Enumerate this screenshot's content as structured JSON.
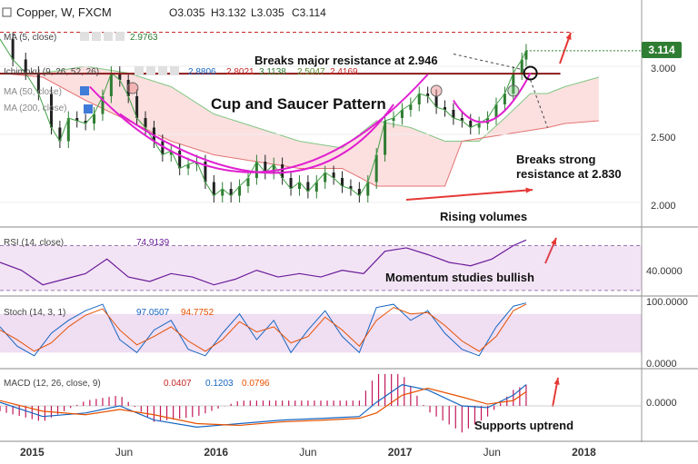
{
  "chart_data": {
    "type": "line",
    "main": {
      "symbol_line": "Copper, W, FXCM",
      "ohlc": {
        "open": "O3.035",
        "high": "H3.132",
        "low": "L3.035",
        "close": "C3.114"
      },
      "price_badge": "3.114",
      "indicators": [
        {
          "label": "MA (5, close)",
          "value": "2.9763",
          "color": "#2e7d32"
        },
        {
          "label": "Ichimoku (9, 26, 52, 26)",
          "values": [
            "2.8806",
            "2.8021",
            "3.1138",
            "2.5047",
            "2.4169"
          ],
          "colors": [
            "#1565c0",
            "#c62828",
            "#2e7d32",
            "#558b2f",
            "#c62828"
          ]
        },
        {
          "label": "MA (50, close)",
          "value": ""
        },
        {
          "label": "MA (200, close)",
          "value": ""
        }
      ],
      "ylabels": [
        "3.000",
        "2.500",
        "2.000"
      ],
      "yticks": [
        3.0,
        2.5,
        2.0
      ],
      "ylim": [
        1.82,
        3.3
      ],
      "resistance_levels": [
        2.946,
        2.83
      ],
      "close_series": [
        [
          0,
          3.2
        ],
        [
          3,
          3.05
        ],
        [
          6,
          2.95
        ],
        [
          9,
          2.8
        ],
        [
          12,
          2.55
        ],
        [
          14,
          2.45
        ],
        [
          16,
          2.62
        ],
        [
          18,
          2.6
        ],
        [
          20,
          2.58
        ],
        [
          22,
          2.65
        ],
        [
          24,
          2.78
        ],
        [
          26,
          2.95
        ],
        [
          28,
          2.9
        ],
        [
          30,
          2.78
        ],
        [
          32,
          2.62
        ],
        [
          34,
          2.55
        ],
        [
          36,
          2.45
        ],
        [
          38,
          2.35
        ],
        [
          40,
          2.38
        ],
        [
          42,
          2.25
        ],
        [
          44,
          2.28
        ],
        [
          46,
          2.3
        ],
        [
          48,
          2.15
        ],
        [
          50,
          2.05
        ],
        [
          52,
          2.1
        ],
        [
          54,
          2.05
        ],
        [
          56,
          2.12
        ],
        [
          58,
          2.18
        ],
        [
          60,
          2.3
        ],
        [
          62,
          2.22
        ],
        [
          64,
          2.28
        ],
        [
          66,
          2.18
        ],
        [
          68,
          2.1
        ],
        [
          70,
          2.15
        ],
        [
          72,
          2.08
        ],
        [
          74,
          2.15
        ],
        [
          76,
          2.22
        ],
        [
          78,
          2.18
        ],
        [
          80,
          2.12
        ],
        [
          82,
          2.1
        ],
        [
          84,
          2.05
        ],
        [
          86,
          2.15
        ],
        [
          88,
          2.35
        ],
        [
          90,
          2.6
        ],
        [
          92,
          2.62
        ],
        [
          94,
          2.68
        ],
        [
          96,
          2.72
        ],
        [
          98,
          2.8
        ],
        [
          100,
          2.78
        ],
        [
          102,
          2.7
        ],
        [
          104,
          2.68
        ],
        [
          106,
          2.62
        ],
        [
          108,
          2.6
        ],
        [
          110,
          2.55
        ],
        [
          112,
          2.58
        ],
        [
          114,
          2.62
        ],
        [
          116,
          2.72
        ],
        [
          118,
          2.8
        ],
        [
          120,
          2.95
        ],
        [
          122,
          3.05
        ],
        [
          123,
          3.114
        ]
      ],
      "kumo_upper": [
        [
          0,
          2.95
        ],
        [
          10,
          2.95
        ],
        [
          20,
          3.0
        ],
        [
          30,
          2.95
        ],
        [
          40,
          2.85
        ],
        [
          50,
          2.65
        ],
        [
          60,
          2.55
        ],
        [
          70,
          2.45
        ],
        [
          80,
          2.4
        ],
        [
          88,
          2.6
        ],
        [
          96,
          2.55
        ],
        [
          104,
          2.45
        ],
        [
          112,
          2.45
        ],
        [
          118,
          2.62
        ],
        [
          124,
          2.8
        ],
        [
          128,
          2.8
        ],
        [
          132,
          2.85
        ],
        [
          140,
          2.92
        ]
      ],
      "kumo_lower": [
        [
          0,
          2.95
        ],
        [
          10,
          2.92
        ],
        [
          20,
          2.75
        ],
        [
          30,
          2.6
        ],
        [
          40,
          2.45
        ],
        [
          50,
          2.35
        ],
        [
          60,
          2.3
        ],
        [
          70,
          2.25
        ],
        [
          80,
          2.25
        ],
        [
          88,
          2.12
        ],
        [
          96,
          2.12
        ],
        [
          104,
          2.12
        ],
        [
          108,
          2.45
        ],
        [
          118,
          2.5
        ],
        [
          128,
          2.55
        ],
        [
          132,
          2.58
        ],
        [
          140,
          2.6
        ]
      ],
      "annotations": [
        "Breaks major resistance at 2.946",
        "Cup and Saucer Pattern",
        "Breaks strong",
        "resistance at 2.830",
        "Rising volumes"
      ]
    },
    "rsi": {
      "label": "RSI (14, close)",
      "value": "74.9139",
      "ylabel": "40.0000",
      "band": [
        30,
        70
      ],
      "ylim": [
        25,
        85
      ],
      "series": [
        [
          0,
          55
        ],
        [
          5,
          48
        ],
        [
          10,
          35
        ],
        [
          15,
          40
        ],
        [
          20,
          45
        ],
        [
          25,
          58
        ],
        [
          30,
          42
        ],
        [
          35,
          38
        ],
        [
          40,
          45
        ],
        [
          45,
          42
        ],
        [
          50,
          35
        ],
        [
          55,
          40
        ],
        [
          60,
          48
        ],
        [
          65,
          42
        ],
        [
          70,
          45
        ],
        [
          75,
          42
        ],
        [
          80,
          48
        ],
        [
          85,
          45
        ],
        [
          90,
          65
        ],
        [
          95,
          68
        ],
        [
          100,
          62
        ],
        [
          105,
          55
        ],
        [
          110,
          52
        ],
        [
          115,
          58
        ],
        [
          120,
          70
        ],
        [
          123,
          75
        ]
      ],
      "annotation": "Momentum studies bullish"
    },
    "stoch": {
      "label": "Stoch (14, 3, 1)",
      "k_value": "97.0507",
      "d_value": "94.7752",
      "ylabels": [
        "100.0000",
        "0.0000"
      ],
      "band": [
        20,
        80
      ],
      "ylim": [
        -5,
        105
      ],
      "k": [
        [
          0,
          60
        ],
        [
          4,
          30
        ],
        [
          8,
          15
        ],
        [
          12,
          50
        ],
        [
          16,
          70
        ],
        [
          20,
          85
        ],
        [
          24,
          95
        ],
        [
          28,
          40
        ],
        [
          32,
          20
        ],
        [
          36,
          55
        ],
        [
          40,
          70
        ],
        [
          44,
          25
        ],
        [
          48,
          15
        ],
        [
          52,
          50
        ],
        [
          56,
          80
        ],
        [
          60,
          40
        ],
        [
          64,
          70
        ],
        [
          68,
          20
        ],
        [
          72,
          55
        ],
        [
          76,
          85
        ],
        [
          80,
          45
        ],
        [
          84,
          20
        ],
        [
          88,
          90
        ],
        [
          92,
          95
        ],
        [
          96,
          70
        ],
        [
          100,
          85
        ],
        [
          104,
          50
        ],
        [
          108,
          25
        ],
        [
          112,
          15
        ],
        [
          116,
          60
        ],
        [
          120,
          92
        ],
        [
          123,
          97
        ]
      ],
      "d": [
        [
          0,
          55
        ],
        [
          4,
          40
        ],
        [
          8,
          22
        ],
        [
          12,
          35
        ],
        [
          16,
          60
        ],
        [
          20,
          78
        ],
        [
          24,
          88
        ],
        [
          28,
          55
        ],
        [
          32,
          32
        ],
        [
          36,
          45
        ],
        [
          40,
          60
        ],
        [
          44,
          38
        ],
        [
          48,
          22
        ],
        [
          52,
          40
        ],
        [
          56,
          68
        ],
        [
          60,
          52
        ],
        [
          64,
          60
        ],
        [
          68,
          35
        ],
        [
          72,
          45
        ],
        [
          76,
          75
        ],
        [
          80,
          55
        ],
        [
          84,
          30
        ],
        [
          88,
          70
        ],
        [
          92,
          90
        ],
        [
          96,
          80
        ],
        [
          100,
          82
        ],
        [
          104,
          62
        ],
        [
          108,
          38
        ],
        [
          112,
          22
        ],
        [
          116,
          45
        ],
        [
          120,
          85
        ],
        [
          123,
          95
        ]
      ]
    },
    "macd": {
      "label": "MACD (12, 26, close, 9)",
      "values": [
        "0.0407",
        "0.1203",
        "0.0796"
      ],
      "ylabel": "0.0000",
      "ylim": [
        -0.2,
        0.2
      ],
      "macd_line": [
        [
          0,
          0.02
        ],
        [
          10,
          -0.06
        ],
        [
          20,
          -0.04
        ],
        [
          28,
          0.0
        ],
        [
          36,
          -0.08
        ],
        [
          46,
          -0.12
        ],
        [
          56,
          -0.1
        ],
        [
          66,
          -0.08
        ],
        [
          76,
          -0.07
        ],
        [
          84,
          -0.06
        ],
        [
          88,
          0.02
        ],
        [
          94,
          0.12
        ],
        [
          100,
          0.09
        ],
        [
          108,
          0.0
        ],
        [
          114,
          -0.01
        ],
        [
          120,
          0.06
        ],
        [
          123,
          0.12
        ]
      ],
      "signal_line": [
        [
          0,
          0.03
        ],
        [
          10,
          -0.03
        ],
        [
          20,
          -0.05
        ],
        [
          28,
          -0.02
        ],
        [
          36,
          -0.05
        ],
        [
          46,
          -0.1
        ],
        [
          56,
          -0.11
        ],
        [
          66,
          -0.09
        ],
        [
          76,
          -0.08
        ],
        [
          84,
          -0.07
        ],
        [
          88,
          -0.04
        ],
        [
          94,
          0.06
        ],
        [
          100,
          0.1
        ],
        [
          108,
          0.05
        ],
        [
          114,
          0.01
        ],
        [
          120,
          0.03
        ],
        [
          123,
          0.08
        ]
      ],
      "annotation": "Supports uptrend"
    },
    "x_axis": {
      "labels": [
        "2015",
        "Jun",
        "2016",
        "Jun",
        "2017",
        "Jun",
        "2018"
      ],
      "bold": [
        true,
        false,
        true,
        false,
        true,
        false,
        true
      ],
      "positions": [
        7.5,
        29,
        50.5,
        72,
        93.5,
        115,
        136.5
      ],
      "xlim": [
        0,
        150
      ]
    }
  }
}
